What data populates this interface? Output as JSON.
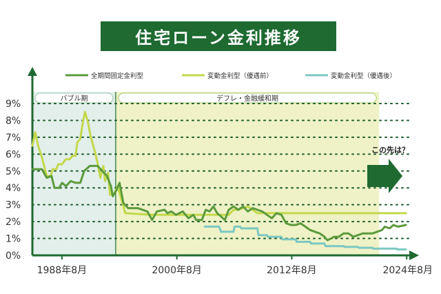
{
  "chart_data": {
    "type": "line",
    "title": "住宅ローン金利推移",
    "yticks": [
      "0%",
      "1%",
      "2%",
      "3%",
      "4%",
      "5%",
      "6%",
      "7%",
      "8%",
      "9%"
    ],
    "xticks": [
      {
        "label": "1988年8月",
        "x": 1988.583
      },
      {
        "label": "2000年8月",
        "x": 2000.583
      },
      {
        "label": "2012年8月",
        "x": 2012.583
      },
      {
        "label": "2024年8月",
        "x": 2024.583
      }
    ],
    "xlim": [
      1985.5,
      2025
    ],
    "ylim": [
      0,
      9
    ],
    "grid": true,
    "legend_position": "top",
    "periods": [
      {
        "label": "バブル期",
        "from": 1985.5,
        "to": 1994.2
      },
      {
        "label": "デフレ・金融緩和期",
        "from": 1994.2,
        "to": 2021.7
      }
    ],
    "annotation": "この先は？",
    "series": [
      {
        "name": "全期間固定金利型",
        "color": "#5b9a3c",
        "points": [
          [
            1985.5,
            5.1
          ],
          [
            1986.5,
            5.1
          ],
          [
            1987,
            4.6
          ],
          [
            1987.5,
            4.7
          ],
          [
            1987.8,
            4.0
          ],
          [
            1988.3,
            4.0
          ],
          [
            1988.6,
            4.3
          ],
          [
            1989,
            4.1
          ],
          [
            1989.5,
            4.4
          ],
          [
            1990,
            4.3
          ],
          [
            1990.5,
            4.3
          ],
          [
            1990.9,
            5.0
          ],
          [
            1991.5,
            5.3
          ],
          [
            1992.3,
            5.3
          ],
          [
            1992.8,
            5.0
          ],
          [
            1993.3,
            4.7
          ],
          [
            1993.7,
            4.1
          ],
          [
            1993.9,
            3.5
          ],
          [
            1994.3,
            3.9
          ],
          [
            1994.6,
            4.3
          ],
          [
            1995,
            3.1
          ],
          [
            1995.5,
            2.8
          ],
          [
            1996.5,
            2.8
          ],
          [
            1997.5,
            2.6
          ],
          [
            1998,
            2.1
          ],
          [
            1998.5,
            2.6
          ],
          [
            1999.3,
            2.7
          ],
          [
            1999.6,
            2.5
          ],
          [
            2000,
            2.6
          ],
          [
            2000.5,
            2.4
          ],
          [
            2001.2,
            2.6
          ],
          [
            2001.8,
            2.2
          ],
          [
            2002.3,
            2.4
          ],
          [
            2002.6,
            2.1
          ],
          [
            2003.2,
            2.1
          ],
          [
            2003.6,
            2.7
          ],
          [
            2004,
            2.6
          ],
          [
            2004.4,
            2.9
          ],
          [
            2004.8,
            2.5
          ],
          [
            2005.2,
            2.3
          ],
          [
            2005.6,
            2.1
          ],
          [
            2006,
            2.7
          ],
          [
            2006.5,
            2.9
          ],
          [
            2007,
            2.7
          ],
          [
            2007.5,
            2.9
          ],
          [
            2008,
            2.6
          ],
          [
            2008.5,
            2.8
          ],
          [
            2009,
            2.7
          ],
          [
            2009.5,
            2.6
          ],
          [
            2010,
            2.4
          ],
          [
            2010.5,
            2.2
          ],
          [
            2011,
            2.5
          ],
          [
            2011.5,
            2.4
          ],
          [
            2012,
            1.9
          ],
          [
            2012.5,
            1.8
          ],
          [
            2013,
            1.8
          ],
          [
            2013.5,
            1.9
          ],
          [
            2014,
            1.7
          ],
          [
            2014.5,
            1.5
          ],
          [
            2015,
            1.4
          ],
          [
            2015.5,
            1.3
          ],
          [
            2016,
            1.1
          ],
          [
            2016.3,
            0.9
          ],
          [
            2016.7,
            1.0
          ],
          [
            2017,
            1.1
          ],
          [
            2017.5,
            1.1
          ],
          [
            2018,
            1.3
          ],
          [
            2018.5,
            1.3
          ],
          [
            2019,
            1.1
          ],
          [
            2019.5,
            1.2
          ],
          [
            2020,
            1.3
          ],
          [
            2020.5,
            1.3
          ],
          [
            2021,
            1.3
          ],
          [
            2021.5,
            1.4
          ],
          [
            2022,
            1.5
          ],
          [
            2022.3,
            1.7
          ],
          [
            2022.8,
            1.6
          ],
          [
            2023.2,
            1.8
          ],
          [
            2023.7,
            1.7
          ],
          [
            2024.5,
            1.8
          ]
        ]
      },
      {
        "name": "変動金利型（優遇前）",
        "color": "#c3d84a",
        "points": [
          [
            1985.5,
            6.5
          ],
          [
            1985.8,
            7.3
          ],
          [
            1986.1,
            6.5
          ],
          [
            1986.5,
            5.8
          ],
          [
            1987,
            4.7
          ],
          [
            1987.4,
            4.7
          ],
          [
            1987.6,
            5.1
          ],
          [
            1988,
            5.1
          ],
          [
            1988.2,
            5.4
          ],
          [
            1988.6,
            5.4
          ],
          [
            1989,
            5.7
          ],
          [
            1989.4,
            5.7
          ],
          [
            1989.7,
            5.9
          ],
          [
            1990,
            5.9
          ],
          [
            1990.2,
            6.7
          ],
          [
            1990.5,
            6.9
          ],
          [
            1990.8,
            8.0
          ],
          [
            1991,
            8.5
          ],
          [
            1991.3,
            7.9
          ],
          [
            1991.6,
            7.0
          ],
          [
            1992,
            6.2
          ],
          [
            1992.3,
            5.5
          ],
          [
            1992.6,
            4.6
          ],
          [
            1992.9,
            5.3
          ],
          [
            1993.1,
            4.4
          ],
          [
            1993.4,
            4.9
          ],
          [
            1993.6,
            3.6
          ],
          [
            1994,
            3.6
          ],
          [
            1994.4,
            4.1
          ],
          [
            1994.8,
            3.3
          ],
          [
            1995.2,
            2.5
          ],
          [
            1998,
            2.4
          ],
          [
            2000,
            2.4
          ],
          [
            2002,
            2.4
          ],
          [
            2003,
            2.4
          ],
          [
            2004,
            2.4
          ],
          [
            2006,
            2.4
          ],
          [
            2006.5,
            2.7
          ],
          [
            2007,
            2.7
          ],
          [
            2007.5,
            2.8
          ],
          [
            2008,
            2.9
          ],
          [
            2009,
            2.5
          ],
          [
            2010,
            2.5
          ],
          [
            2012,
            2.5
          ],
          [
            2015,
            2.5
          ],
          [
            2020,
            2.5
          ],
          [
            2024.5,
            2.5
          ]
        ]
      },
      {
        "name": "変動金利型（優遇後）",
        "color": "#7cc7c3",
        "points": [
          [
            2003.5,
            1.7
          ],
          [
            2005,
            1.7
          ],
          [
            2005.2,
            1.4
          ],
          [
            2006.5,
            1.4
          ],
          [
            2006.6,
            1.7
          ],
          [
            2007.2,
            1.7
          ],
          [
            2007.3,
            1.6
          ],
          [
            2009,
            1.6
          ],
          [
            2009.1,
            1.2
          ],
          [
            2010,
            1.2
          ],
          [
            2010.1,
            1.1
          ],
          [
            2011.5,
            1.1
          ],
          [
            2011.6,
            0.95
          ],
          [
            2013,
            0.95
          ],
          [
            2013.1,
            0.8
          ],
          [
            2014.5,
            0.8
          ],
          [
            2014.6,
            0.7
          ],
          [
            2016,
            0.7
          ],
          [
            2016.1,
            0.55
          ],
          [
            2018,
            0.55
          ],
          [
            2018.1,
            0.5
          ],
          [
            2019.5,
            0.5
          ],
          [
            2019.6,
            0.45
          ],
          [
            2021,
            0.45
          ],
          [
            2021.1,
            0.4
          ],
          [
            2023.5,
            0.4
          ],
          [
            2023.6,
            0.35
          ],
          [
            2024.5,
            0.35
          ]
        ]
      }
    ]
  }
}
